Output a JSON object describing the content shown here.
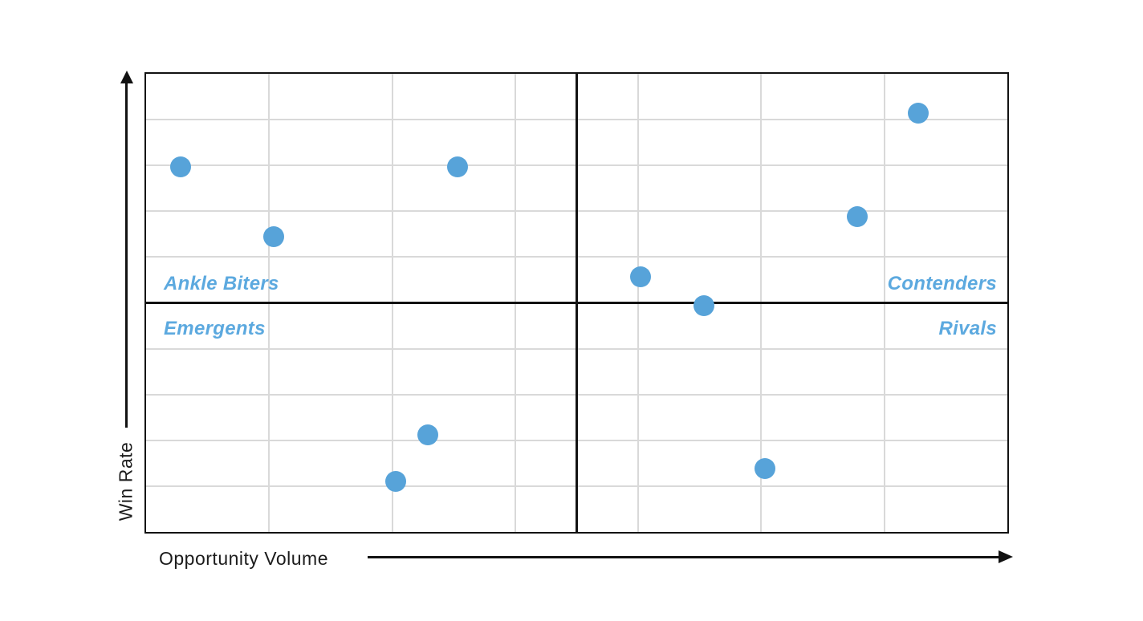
{
  "chart_data": {
    "type": "scatter",
    "xlabel": "Opportunity Volume",
    "ylabel": "Win Rate",
    "x_range": [
      0,
      100
    ],
    "y_range": [
      0,
      100
    ],
    "grid": {
      "show": true,
      "columns": 7,
      "rows": 10
    },
    "legend": {
      "show": false
    },
    "quadrants": {
      "top_left": "Ankle Biters",
      "top_right": "Contenders",
      "bottom_left": "Emergents",
      "bottom_right": "Rivals"
    },
    "points": [
      {
        "x": 4.0,
        "y": 79.7
      },
      {
        "x": 14.8,
        "y": 64.5
      },
      {
        "x": 36.2,
        "y": 79.7
      },
      {
        "x": 57.4,
        "y": 55.7
      },
      {
        "x": 64.8,
        "y": 49.4
      },
      {
        "x": 82.6,
        "y": 68.9
      },
      {
        "x": 89.7,
        "y": 91.5
      },
      {
        "x": 32.7,
        "y": 21.2
      },
      {
        "x": 29.0,
        "y": 11.1
      },
      {
        "x": 71.9,
        "y": 13.9
      }
    ]
  },
  "colors": {
    "point": "#57A3D9",
    "quadrant_label": "#5CA9DF",
    "grid": "#D9D9D9",
    "axis": "#121212",
    "background": "#FFFFFF"
  }
}
